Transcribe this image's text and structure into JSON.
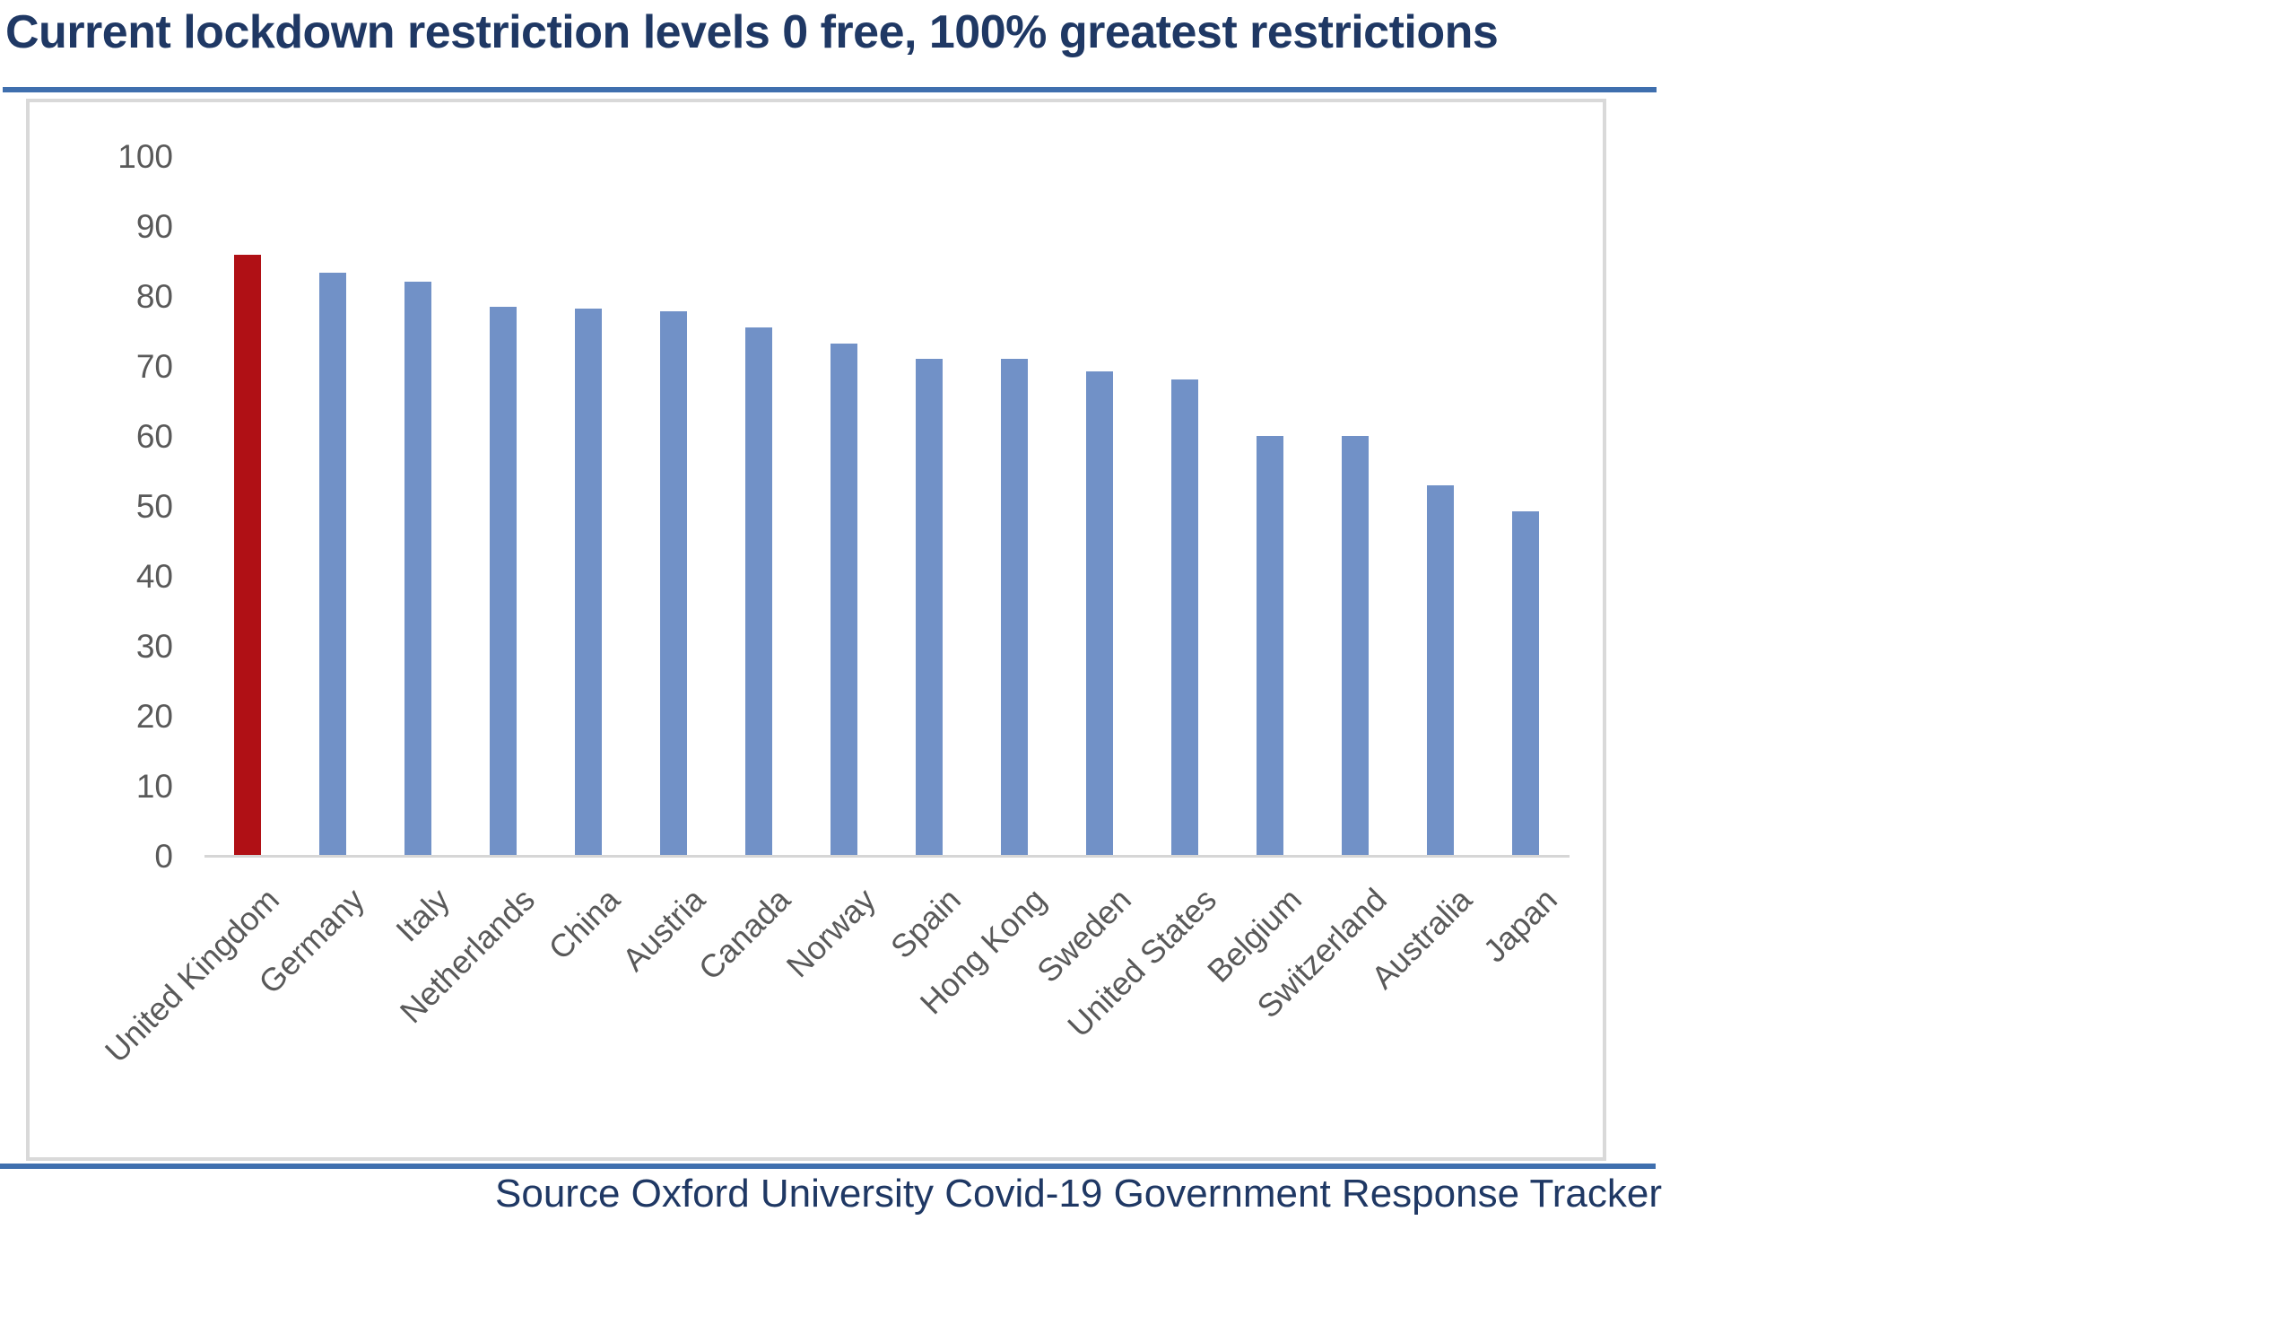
{
  "title": "Current lockdown restriction levels 0 free, 100% greatest restrictions",
  "source_note": "Source Oxford University Covid-19 Government Response Tracker",
  "colors": {
    "title_text": "#1f3864",
    "source_text": "#1f3864",
    "accent_rule_blue": "#3f6fae",
    "bar_default_blue": "#7191c7",
    "bar_highlight_red": "#b01015",
    "axis_label_gray": "#595959",
    "frame_gray": "#d9d9d9",
    "axis_line_gray": "#d6d6d6"
  },
  "chart_data": {
    "type": "bar",
    "title": "Current lockdown restriction levels 0 free, 100% greatest restrictions",
    "categories": [
      "United Kingdom",
      "Germany",
      "Italy",
      "Netherlands",
      "China",
      "Austria",
      "Canada",
      "Norway",
      "Spain",
      "Hong Kong",
      "Sweden",
      "United States",
      "Belgium",
      "Switzerland",
      "Australia",
      "Japan"
    ],
    "values": [
      86.0,
      83.5,
      82.2,
      78.6,
      78.3,
      77.9,
      75.6,
      73.3,
      71.2,
      71.2,
      69.4,
      68.2,
      60.1,
      60.1,
      53.1,
      49.4
    ],
    "highlight_category": "United Kingdom",
    "xlabel": "",
    "ylabel": "",
    "ylim": [
      0,
      100
    ],
    "yticks": [
      0,
      10,
      20,
      30,
      40,
      50,
      60,
      70,
      80,
      90,
      100
    ],
    "grid": false,
    "legend": false,
    "x_tick_rotation_degrees": 45,
    "source": "Source Oxford University Covid-19 Government Response Tracker"
  }
}
